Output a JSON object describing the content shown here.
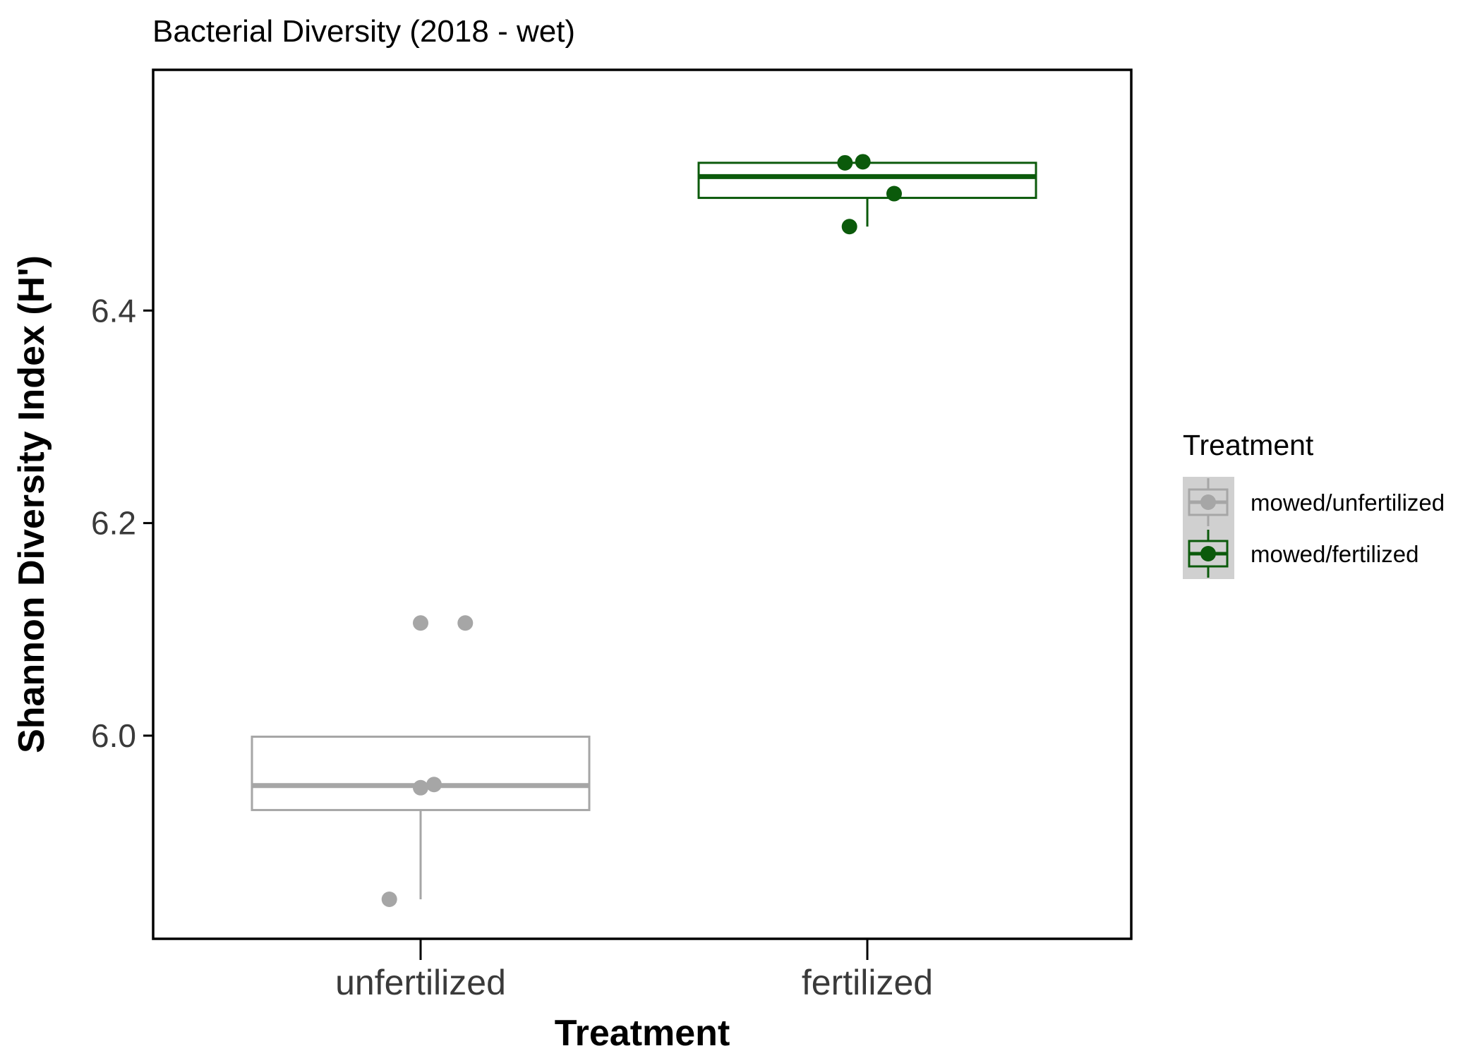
{
  "chart_data": {
    "type": "box",
    "title": "Bacterial Diversity (2018 - wet)",
    "xlabel": "Treatment",
    "ylabel": "Shannon Diversity Index (H')",
    "ylim": [
      5.846,
      6.59
    ],
    "yticks": [
      6.0,
      6.2,
      6.4
    ],
    "ytick_labels": [
      "6.0",
      "6.2",
      "6.4"
    ],
    "grid": false,
    "legend": {
      "title": "Treatment",
      "position": "right",
      "entries": [
        {
          "label": "mowed/unfertilized",
          "color": "#a6a6a6"
        },
        {
          "label": "mowed/fertilized",
          "color": "#0b5a0b"
        }
      ]
    },
    "categories": [
      "unfertilized",
      "fertilized"
    ],
    "series": [
      {
        "category": "unfertilized",
        "color": "#a6a6a6",
        "box": {
          "min": 5.846,
          "q1": 5.93,
          "median": 5.953,
          "q3": 5.999,
          "max": 5.999
        },
        "points": [
          {
            "x": -0.07,
            "y": 5.846
          },
          {
            "x": 0.0,
            "y": 5.951
          },
          {
            "x": 0.03,
            "y": 5.954
          },
          {
            "x": 0.0,
            "y": 6.106
          },
          {
            "x": 0.1,
            "y": 6.106
          }
        ]
      },
      {
        "category": "fertilized",
        "color": "#0b5a0b",
        "box": {
          "min": 6.479,
          "q1": 6.506,
          "median": 6.526,
          "q3": 6.539,
          "max": 6.539
        },
        "points": [
          {
            "x": -0.04,
            "y": 6.479
          },
          {
            "x": 0.06,
            "y": 6.51
          },
          {
            "x": -0.05,
            "y": 6.539
          },
          {
            "x": -0.01,
            "y": 6.54
          }
        ]
      }
    ]
  }
}
